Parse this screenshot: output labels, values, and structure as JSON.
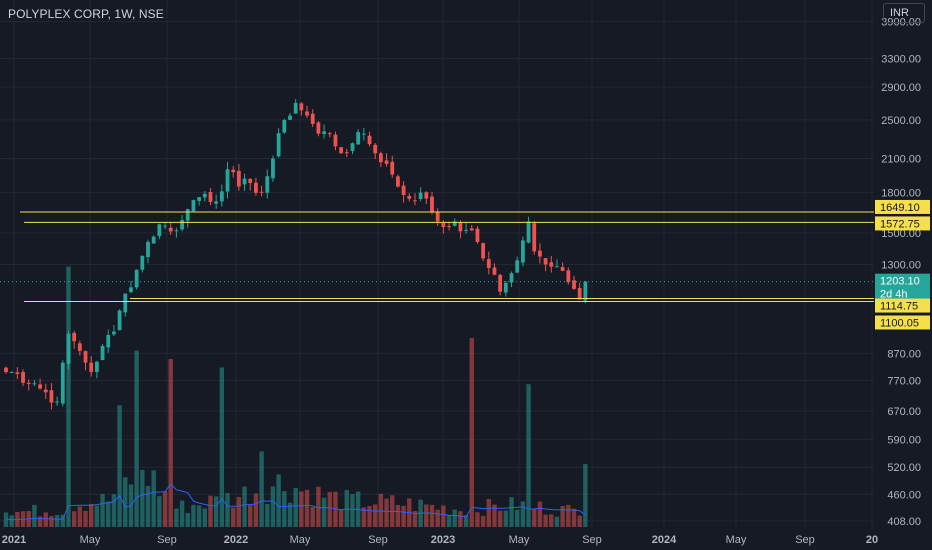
{
  "header": {
    "title": "POLYPLEX CORP, 1W, NSE"
  },
  "currency_button": {
    "label": "INR"
  },
  "colors": {
    "background": "#161a25",
    "up": "#26a69a",
    "down": "#ef5350",
    "level_line": "#f6e04a",
    "volume_ma": "#2962ff",
    "current_price": "#26a69a"
  },
  "chart_data": {
    "type": "candlestick",
    "symbol": "POLYPLEX CORP",
    "interval": "1W",
    "exchange": "NSE",
    "y_scale": "log",
    "ylim": [
      395,
      4300
    ],
    "y_ticks": [
      "3900.00",
      "3300.00",
      "2900.00",
      "2500.00",
      "2100.00",
      "1800.00",
      "1500.00",
      "1300.00",
      "870.00",
      "770.00",
      "670.00",
      "590.00",
      "520.00",
      "460.00",
      "408.00"
    ],
    "x_ticks": [
      "2021",
      "May",
      "Sep",
      "2022",
      "May",
      "Sep",
      "2023",
      "May",
      "Sep",
      "2024",
      "May",
      "Sep",
      "20"
    ],
    "price_labels": [
      "1649.10",
      "1572.75",
      "1203.10",
      "1114.75",
      "1100.05"
    ],
    "countdown_label": "2d 4h",
    "current_price": 1203.1,
    "horizontal_levels": [
      1649.1,
      1572.75,
      1114.75,
      1100.05
    ],
    "series_anchor_close": [
      [
        1,
        800
      ],
      [
        5,
        760
      ],
      [
        9,
        700
      ],
      [
        11,
        950
      ],
      [
        13,
        880
      ],
      [
        15,
        800
      ],
      [
        17,
        900
      ],
      [
        19,
        960
      ],
      [
        21,
        1140
      ],
      [
        23,
        1270
      ],
      [
        25,
        1440
      ],
      [
        27,
        1560
      ],
      [
        29,
        1510
      ],
      [
        31,
        1590
      ],
      [
        33,
        1740
      ],
      [
        35,
        1790
      ],
      [
        37,
        1730
      ],
      [
        39,
        2000
      ],
      [
        41,
        1850
      ],
      [
        43,
        1880
      ],
      [
        45,
        1800
      ],
      [
        47,
        2100
      ],
      [
        49,
        2500
      ],
      [
        51,
        2700
      ],
      [
        53,
        2550
      ],
      [
        55,
        2350
      ],
      [
        57,
        2350
      ],
      [
        59,
        2150
      ],
      [
        61,
        2250
      ],
      [
        63,
        2350
      ],
      [
        65,
        2150
      ],
      [
        67,
        2050
      ],
      [
        69,
        1850
      ],
      [
        71,
        1750
      ],
      [
        73,
        1800
      ],
      [
        75,
        1650
      ],
      [
        77,
        1540
      ],
      [
        79,
        1580
      ],
      [
        81,
        1520
      ],
      [
        83,
        1440
      ],
      [
        85,
        1280
      ],
      [
        87,
        1150
      ],
      [
        89,
        1250
      ],
      [
        91,
        1450
      ],
      [
        92,
        1580
      ],
      [
        93,
        1380
      ],
      [
        95,
        1300
      ],
      [
        97,
        1290
      ],
      [
        99,
        1200
      ],
      [
        101,
        1110
      ],
      [
        102,
        1203
      ]
    ],
    "volume_profile": [
      [
        1,
        1.0
      ],
      [
        10,
        1.2
      ],
      [
        11,
        6.0
      ],
      [
        12,
        1.6
      ],
      [
        18,
        1.8
      ],
      [
        20,
        2.6
      ],
      [
        24,
        4.0
      ],
      [
        30,
        1.3
      ],
      [
        40,
        2.0
      ],
      [
        48,
        3.0
      ],
      [
        55,
        2.2
      ],
      [
        60,
        1.8
      ],
      [
        70,
        1.6
      ],
      [
        80,
        1.2
      ],
      [
        90,
        1.5
      ],
      [
        100,
        1.1
      ],
      [
        102,
        1.6
      ]
    ],
    "volume_spikes": {
      "11": 6.2,
      "20": 2.9,
      "23": 4.2,
      "29": 4.0,
      "38": 3.8,
      "45": 1.8,
      "82": 4.5,
      "92": 3.4,
      "102": 1.5
    }
  }
}
